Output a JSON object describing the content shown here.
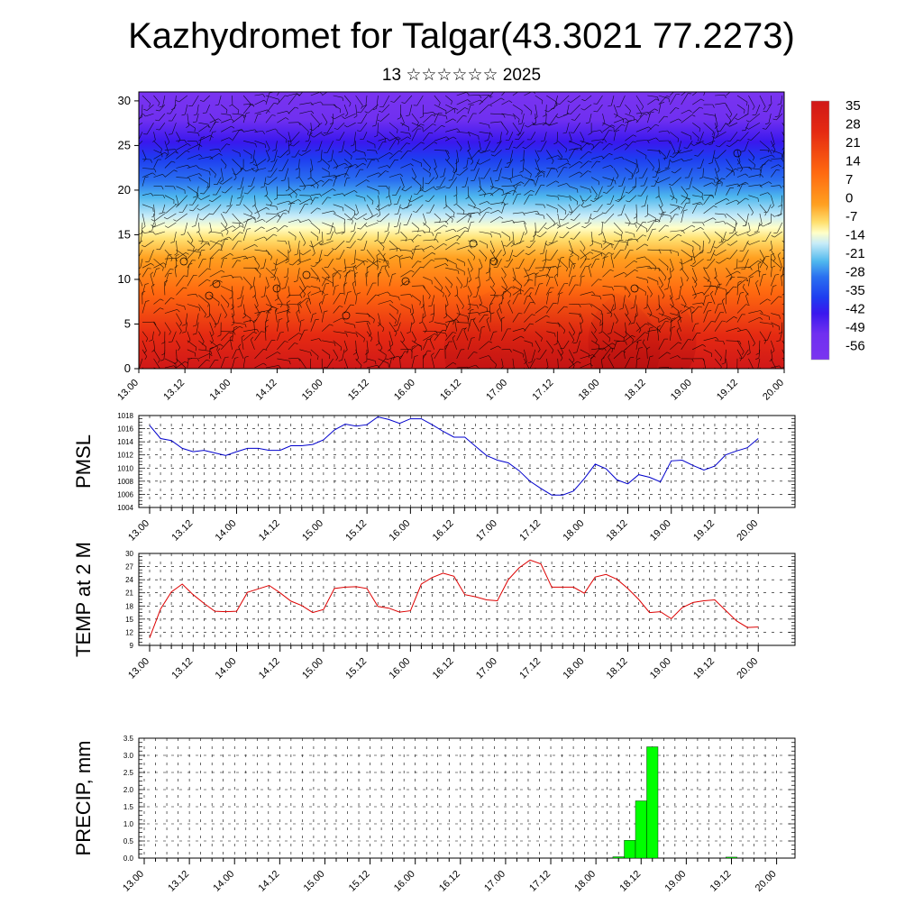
{
  "title": "Kazhydromet for Talgar(43.3021 77.2273)",
  "subtitle": "13 ☆☆☆☆☆☆ 2025",
  "chart_data": [
    {
      "type": "heatmap",
      "name": "cross-section",
      "y_ticks": [
        0,
        5,
        10,
        15,
        20,
        25,
        30
      ],
      "ylim": [
        0,
        31
      ],
      "x_ticks": [
        "13.00",
        "13.12",
        "14.00",
        "14.12",
        "15.00",
        "15.12",
        "16.00",
        "16.12",
        "17.00",
        "17.12",
        "18.00",
        "18.12",
        "19.00",
        "19.12",
        "20.00"
      ],
      "colorbar_labels": [
        "35",
        "28",
        "21",
        "14",
        "7",
        "0",
        "-7",
        "-14",
        "-21",
        "-28",
        "-35",
        "-42",
        "-49",
        "-56"
      ],
      "colors": [
        "#f2b0b0",
        "#e02020",
        "#ff8a00",
        "#ffd050",
        "#ffffc0",
        "#bfe6f5",
        "#4fb8ee",
        "#2060f0",
        "#3a10ee",
        "#7a30f0"
      ],
      "has_wind_barbs": true
    },
    {
      "type": "line",
      "name": "pmsl",
      "ylabel": "PMSL",
      "ylim": [
        1004,
        1018
      ],
      "y_ticks": [
        1004,
        1006,
        1008,
        1010,
        1012,
        1014,
        1016,
        1018
      ],
      "x_ticks": [
        "13.00",
        "13.12",
        "14.00",
        "14.12",
        "15.00",
        "15.12",
        "16.00",
        "16.12",
        "17.00",
        "17.12",
        "18.00",
        "18.12",
        "19.00",
        "19.12",
        "20.00"
      ],
      "color": "#0000cc",
      "values": [
        1016.5,
        1014.5,
        1014.2,
        1013.0,
        1012.5,
        1012.7,
        1012.3,
        1011.9,
        1012.5,
        1013.0,
        1013.0,
        1012.7,
        1012.7,
        1013.4,
        1013.4,
        1013.6,
        1014.3,
        1015.8,
        1016.7,
        1016.4,
        1016.6,
        1017.8,
        1017.4,
        1016.8,
        1017.5,
        1017.5,
        1016.6,
        1015.6,
        1014.7,
        1014.7,
        1013.3,
        1011.9,
        1011.2,
        1010.8,
        1009.6,
        1008.0,
        1006.9,
        1005.9,
        1005.9,
        1006.5,
        1008.4,
        1010.6,
        1009.9,
        1008.2,
        1007.6,
        1009.0,
        1008.6,
        1007.9,
        1011.1,
        1011.2,
        1010.4,
        1009.7,
        1010.3,
        1012.0,
        1012.6,
        1013.1,
        1014.5
      ]
    },
    {
      "type": "line",
      "name": "temp",
      "ylabel": "TEMP at 2 M",
      "ylim": [
        9,
        30
      ],
      "y_ticks": [
        9,
        12,
        15,
        18,
        21,
        24,
        27,
        30
      ],
      "x_ticks": [
        "13.00",
        "13.12",
        "14.00",
        "14.12",
        "15.00",
        "15.12",
        "16.00",
        "16.12",
        "17.00",
        "17.12",
        "18.00",
        "18.12",
        "19.00",
        "19.12",
        "20.00"
      ],
      "color": "#dd0000",
      "values": [
        10.7,
        17.3,
        21.2,
        23.0,
        20.6,
        18.6,
        16.8,
        16.7,
        16.8,
        21.1,
        21.9,
        22.7,
        21.0,
        19.1,
        18.1,
        16.5,
        17.2,
        22.0,
        22.3,
        22.4,
        22.0,
        17.9,
        17.5,
        16.6,
        16.9,
        23.0,
        24.5,
        25.5,
        24.8,
        20.6,
        20.1,
        19.4,
        19.2,
        24.0,
        26.7,
        28.5,
        27.6,
        22.3,
        22.3,
        22.3,
        20.9,
        24.6,
        25.2,
        24.1,
        22.0,
        19.5,
        16.5,
        16.7,
        15.1,
        17.6,
        18.8,
        19.2,
        19.4,
        17.0,
        14.6,
        13.1,
        13.2
      ]
    },
    {
      "type": "bar",
      "name": "precip",
      "ylabel": "PRECIP, mm",
      "ylim": [
        0,
        3.5
      ],
      "y_ticks": [
        "0.0",
        "0.5",
        "1.0",
        "1.5",
        "2.0",
        "2.5",
        "3.0",
        "3.5"
      ],
      "x_ticks": [
        "13.00",
        "13.12",
        "14.00",
        "14.12",
        "15.00",
        "15.12",
        "16.00",
        "16.12",
        "17.00",
        "17.12",
        "18.00",
        "18.12",
        "19.00",
        "19.12",
        "20.00"
      ],
      "color": "#00ff00",
      "bars": [
        {
          "x": 18.25,
          "value": 0.04
        },
        {
          "x": 18.375,
          "value": 0.52
        },
        {
          "x": 18.5,
          "value": 1.67
        },
        {
          "x": 18.625,
          "value": 3.25
        },
        {
          "x": 19.5,
          "value": 0.03
        }
      ]
    }
  ]
}
